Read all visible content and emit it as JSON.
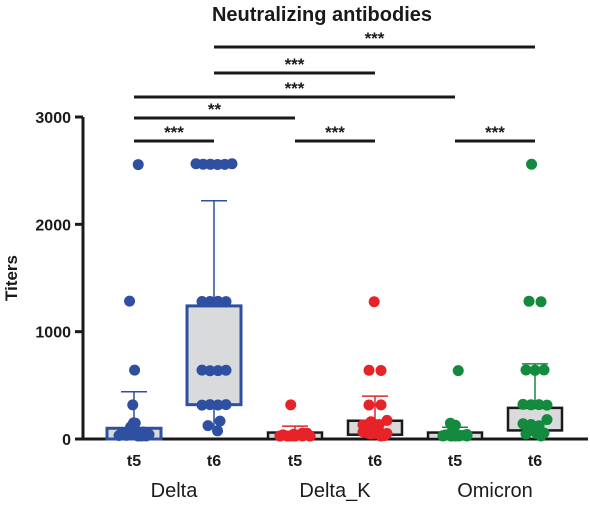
{
  "chart_data": {
    "type": "box-scatter",
    "title": "Neutralizing antibodies",
    "ylabel": "Titers",
    "ylim": [
      0,
      3000
    ],
    "yticks": [
      0,
      1000,
      2000,
      3000
    ],
    "groups": [
      {
        "name": "Delta",
        "color": "#2f4fa0",
        "box_fill": "#ffffff",
        "timepoints": [
          {
            "label": "t5",
            "q1": 0,
            "median": 40,
            "q3": 100,
            "whisker_low": 0,
            "whisker_high": 440,
            "points": [
              2560,
              1280,
              640,
              320,
              160,
              120,
              80,
              60,
              40,
              40,
              40,
              20,
              20,
              20,
              20,
              10,
              10,
              10,
              10,
              10
            ]
          },
          {
            "label": "t6",
            "q1": 320,
            "median": 640,
            "q3": 1240,
            "whisker_low": 40,
            "whisker_high": 2220,
            "points": [
              2560,
              2560,
              2560,
              2560,
              2560,
              2560,
              1280,
              1280,
              1280,
              1280,
              640,
              640,
              640,
              640,
              320,
              320,
              320,
              320,
              160,
              160,
              80
            ]
          }
        ]
      },
      {
        "name": "Delta_K",
        "color": "#e62329",
        "box_fill": "#ffffff",
        "timepoints": [
          {
            "label": "t5",
            "q1": 0,
            "median": 20,
            "q3": 60,
            "whisker_low": 0,
            "whisker_high": 120,
            "points": [
              320,
              80,
              60,
              40,
              40,
              40,
              40,
              20,
              20,
              20,
              20,
              20,
              10,
              10,
              10,
              10,
              10
            ]
          },
          {
            "label": "t6",
            "q1": 40,
            "median": 100,
            "q3": 170,
            "whisker_low": 0,
            "whisker_high": 400,
            "points": [
              1280,
              640,
              640,
              320,
              320,
              160,
              160,
              160,
              160,
              120,
              80,
              80,
              80,
              80,
              40,
              40,
              40,
              20,
              20
            ]
          }
        ]
      },
      {
        "name": "Omicron",
        "color": "#138a3e",
        "box_fill": "#ffffff",
        "timepoints": [
          {
            "label": "t5",
            "q1": 0,
            "median": 20,
            "q3": 60,
            "whisker_low": 0,
            "whisker_high": 110,
            "points": [
              640,
              160,
              120,
              80,
              60,
              40,
              40,
              40,
              20,
              20,
              20,
              20,
              10,
              10,
              10,
              10
            ]
          },
          {
            "label": "t6",
            "q1": 80,
            "median": 160,
            "q3": 290,
            "whisker_low": 0,
            "whisker_high": 700,
            "points": [
              2560,
              1280,
              1280,
              640,
              640,
              640,
              320,
              320,
              320,
              320,
              160,
              160,
              160,
              160,
              120,
              80,
              80,
              80,
              40,
              40
            ]
          }
        ]
      }
    ],
    "significance": [
      {
        "label": "***",
        "from": "Delta t6",
        "to": "Omicron t6"
      },
      {
        "label": "***",
        "from": "Delta t6",
        "to": "Delta_K t6"
      },
      {
        "label": "***",
        "from": "Delta t5",
        "to": "Omicron t5"
      },
      {
        "label": "**",
        "from": "Delta t5",
        "to": "Delta_K t5"
      },
      {
        "label": "***",
        "from": "Delta t5",
        "to": "Delta t6"
      },
      {
        "label": "***",
        "from": "Delta_K t5",
        "to": "Delta_K t6"
      },
      {
        "label": "***",
        "from": "Omicron t5",
        "to": "Omicron t6"
      }
    ]
  }
}
